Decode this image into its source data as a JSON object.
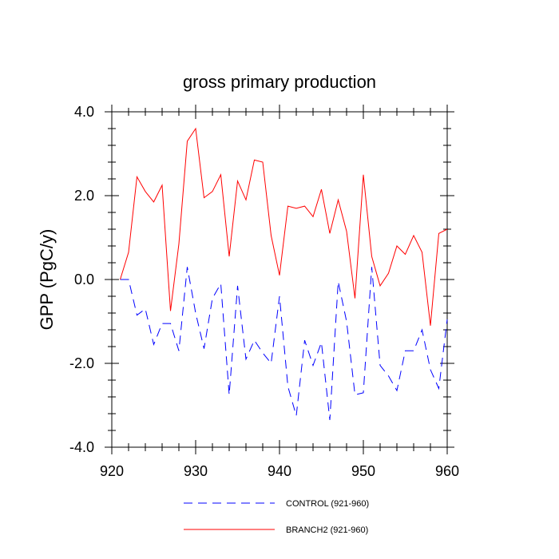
{
  "chart_data": {
    "type": "line",
    "title": "gross primary production",
    "xlabel": "",
    "ylabel": "GPP  (PgC/y)",
    "xlim": [
      920,
      960
    ],
    "ylim": [
      -4.0,
      4.0
    ],
    "xticks": [
      920,
      930,
      940,
      950,
      960
    ],
    "xtick_labels": [
      "920",
      "930",
      "940",
      "950",
      "960"
    ],
    "yticks": [
      -4.0,
      -2.0,
      0.0,
      2.0,
      4.0
    ],
    "ytick_labels": [
      "-4.0",
      "-2.0",
      "0.0",
      "2.0",
      "4.0"
    ],
    "grid": false,
    "legend_position": "bottom",
    "x": [
      921,
      922,
      923,
      924,
      925,
      926,
      927,
      928,
      929,
      930,
      931,
      932,
      933,
      934,
      935,
      936,
      937,
      938,
      939,
      940,
      941,
      942,
      943,
      944,
      945,
      946,
      947,
      948,
      949,
      950,
      951,
      952,
      953,
      954,
      955,
      956,
      957,
      958,
      959,
      960
    ],
    "series": [
      {
        "name": "CONTROL (921-960)",
        "color": "#0000ff",
        "dash": "dashed",
        "values": [
          0.0,
          0.0,
          -0.85,
          -0.7,
          -1.55,
          -1.05,
          -1.05,
          -1.7,
          0.3,
          -0.8,
          -1.65,
          -0.45,
          -0.1,
          -2.75,
          -0.15,
          -1.9,
          -1.45,
          -1.75,
          -2.0,
          -0.4,
          -2.55,
          -3.25,
          -1.45,
          -2.05,
          -1.5,
          -3.35,
          -0.05,
          -1.0,
          -2.75,
          -2.7,
          0.3,
          -2.05,
          -2.3,
          -2.65,
          -1.7,
          -1.7,
          -1.2,
          -2.15,
          -2.6,
          -0.95
        ]
      },
      {
        "name": "BRANCH2 (921-960)",
        "color": "#ff0000",
        "dash": "solid",
        "values": [
          0.0,
          0.65,
          2.45,
          2.1,
          1.85,
          2.25,
          -0.75,
          0.85,
          3.3,
          3.6,
          1.95,
          2.1,
          2.5,
          0.55,
          2.35,
          1.9,
          2.85,
          2.8,
          1.05,
          0.1,
          1.75,
          1.7,
          1.75,
          1.5,
          2.15,
          1.1,
          1.9,
          1.15,
          -0.45,
          2.5,
          0.55,
          -0.15,
          0.15,
          0.8,
          0.6,
          1.05,
          0.65,
          -1.1,
          1.1,
          1.2
        ]
      }
    ]
  }
}
